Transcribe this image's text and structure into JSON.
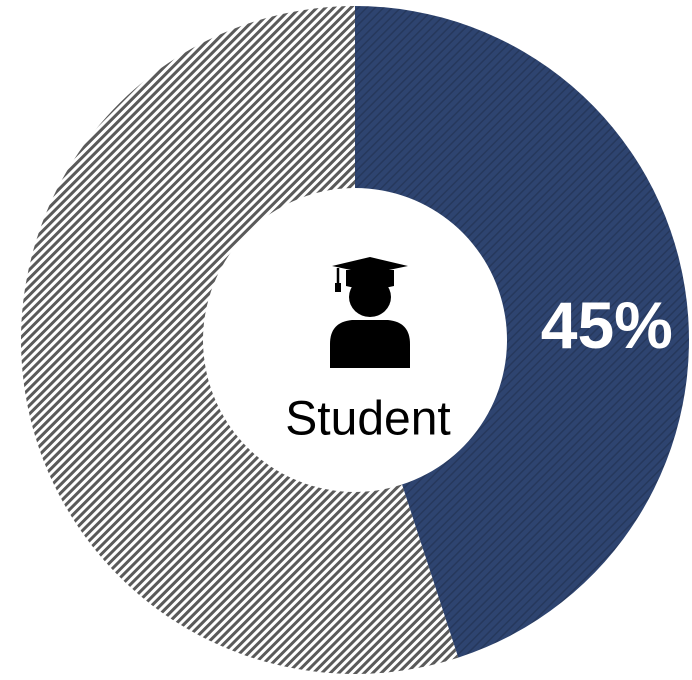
{
  "chart_data": {
    "type": "donut",
    "center_label": "Student",
    "values": [
      45,
      55
    ],
    "value_labels": [
      "45%",
      null
    ],
    "colors": [
      "#2e4470",
      "#5a5a5a"
    ]
  }
}
